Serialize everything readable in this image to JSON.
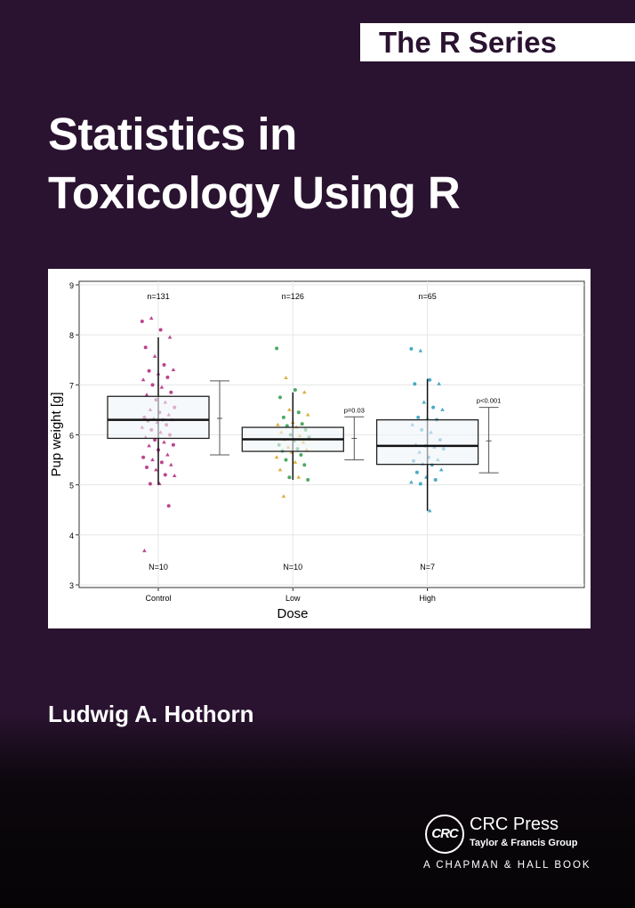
{
  "series_label": "The R Series",
  "title_lines": [
    "Statistics in",
    "Toxicology Using R"
  ],
  "author": "Ludwig A. Hothorn",
  "publisher": {
    "logo_text": "CRC",
    "name": "CRC Press",
    "group": "Taylor & Francis Group",
    "imprint": "A CHAPMAN & HALL BOOK"
  },
  "colors": {
    "background": "#2a1330",
    "control": "#b0237a",
    "low": "#2e9a4a",
    "low_alt": "#d8a020",
    "high": "#2a9bbd"
  },
  "chart_data": {
    "type": "box",
    "xlabel": "Dose",
    "ylabel": "Pup weight [g]",
    "ylim": [
      3,
      9
    ],
    "yticks": [
      3,
      4,
      5,
      6,
      7,
      8,
      9
    ],
    "grid": true,
    "categories": [
      "Control",
      "Low",
      "High"
    ],
    "top_labels": [
      "n=131",
      "n=126",
      "n=65"
    ],
    "bottom_labels": [
      "N=10",
      "N=10",
      "N=7"
    ],
    "boxes": [
      {
        "q1": 5.93,
        "median": 6.3,
        "q3": 6.77,
        "lower": 5.0,
        "upper": 7.95
      },
      {
        "q1": 5.67,
        "median": 5.91,
        "q3": 6.15,
        "lower": 5.1,
        "upper": 6.85
      },
      {
        "q1": 5.41,
        "median": 5.78,
        "q3": 6.3,
        "lower": 4.48,
        "upper": 7.12
      }
    ],
    "intervals": [
      {
        "mean": 6.33,
        "lower": 5.6,
        "upper": 7.08,
        "label": ""
      },
      {
        "mean": 5.93,
        "lower": 5.5,
        "upper": 6.36,
        "label": "p=0.03"
      },
      {
        "mean": 5.88,
        "lower": 5.24,
        "upper": 6.55,
        "label": "p<0.001"
      }
    ],
    "points": [
      [
        8.27,
        8.33,
        8.1,
        7.95,
        7.75,
        7.57,
        7.4,
        7.3,
        7.28,
        7.22,
        7.15,
        7.1,
        7.0,
        6.95,
        6.85,
        6.8,
        6.7,
        6.65,
        6.55,
        6.5,
        6.45,
        6.4,
        6.35,
        6.32,
        6.3,
        6.3,
        6.28,
        6.25,
        6.2,
        6.15,
        6.1,
        6.05,
        6.0,
        5.95,
        5.9,
        5.85,
        5.8,
        5.78,
        5.7,
        5.6,
        5.55,
        5.5,
        5.45,
        5.4,
        5.35,
        5.3,
        5.2,
        5.18,
        5.02,
        5.02,
        4.58,
        3.68
      ],
      [
        7.73,
        7.14,
        6.9,
        6.85,
        6.75,
        6.5,
        6.45,
        6.4,
        6.35,
        6.25,
        6.22,
        6.2,
        6.18,
        6.15,
        6.1,
        6.05,
        6.0,
        5.98,
        5.95,
        5.9,
        5.88,
        5.85,
        5.8,
        5.75,
        5.72,
        5.7,
        5.68,
        5.65,
        5.6,
        5.55,
        5.5,
        5.45,
        5.4,
        5.3,
        5.15,
        5.15,
        5.1,
        4.77
      ],
      [
        7.72,
        7.68,
        7.1,
        7.02,
        7.02,
        6.65,
        6.55,
        6.5,
        6.35,
        6.32,
        6.3,
        6.2,
        6.1,
        6.05,
        5.9,
        5.8,
        5.78,
        5.75,
        5.72,
        5.65,
        5.55,
        5.5,
        5.48,
        5.42,
        5.4,
        5.3,
        5.25,
        5.15,
        5.1,
        5.05,
        5.02,
        4.48
      ]
    ]
  }
}
